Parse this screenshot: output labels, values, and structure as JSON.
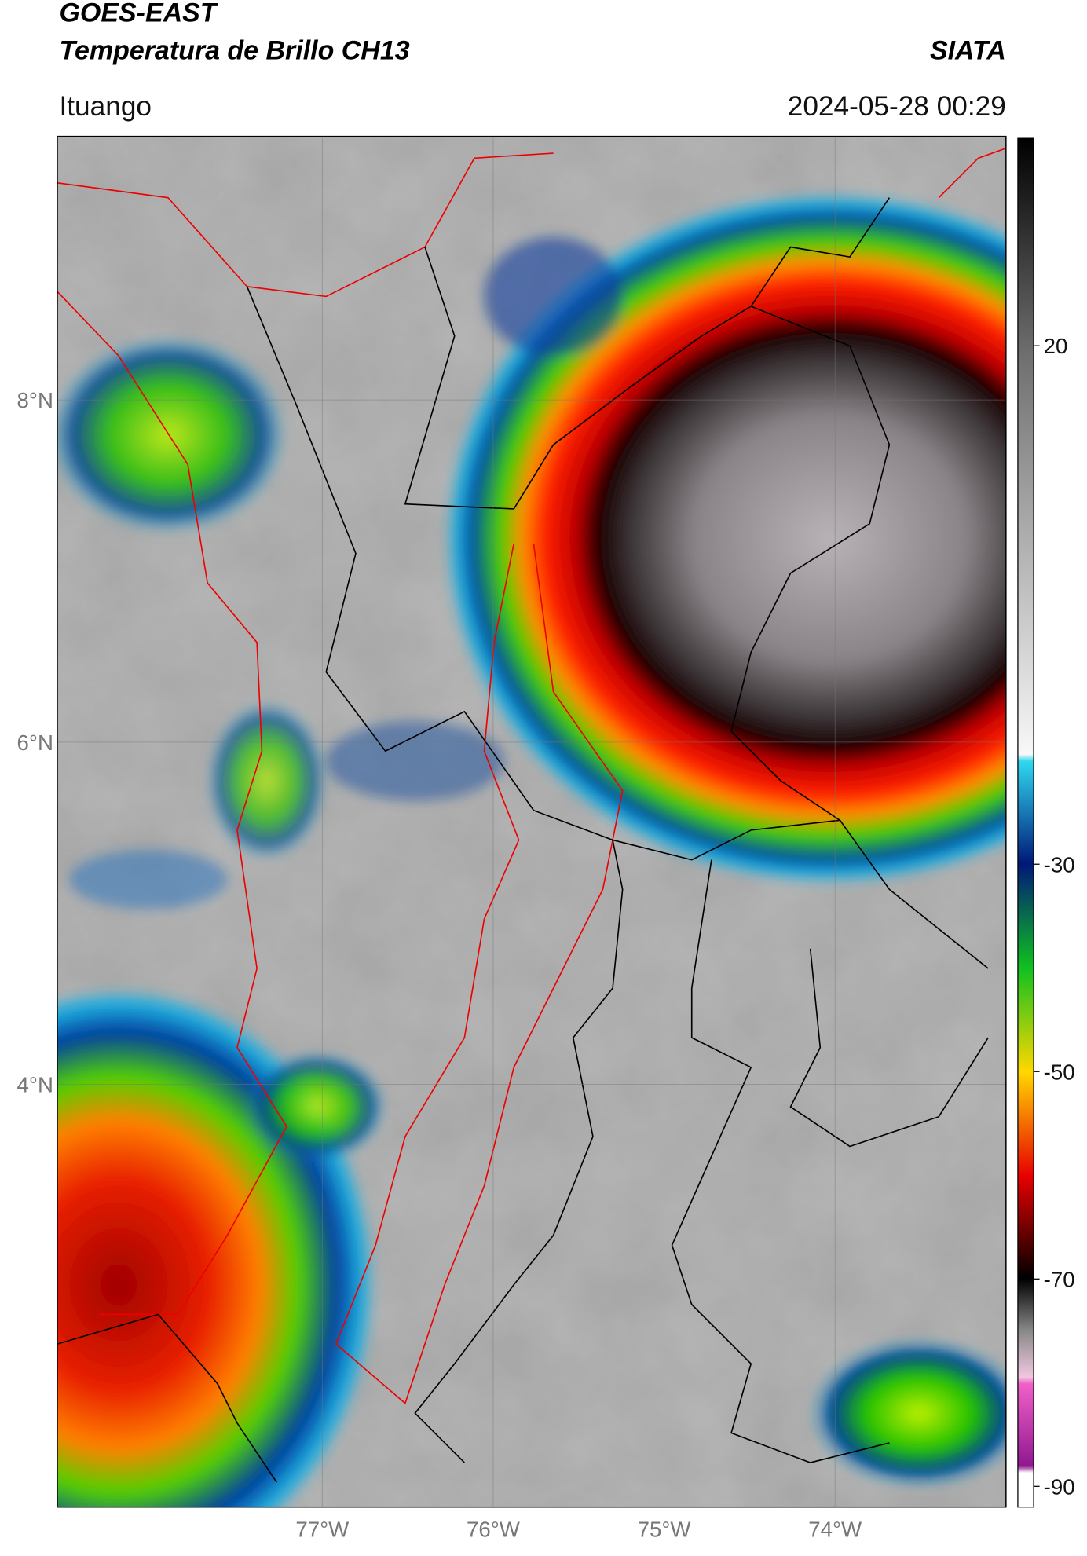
{
  "header": {
    "title": "GOES-EAST",
    "subtitle": "Temperatura de Brillo CH13",
    "source": "SIATA",
    "location": "Ituango",
    "datetime": "2024-05-28 00:29"
  },
  "map": {
    "xlim": [
      -78.55,
      -73.0
    ],
    "ylim": [
      1.53,
      9.54
    ],
    "xticks": [
      {
        "value": -77,
        "label": "77°W"
      },
      {
        "value": -76,
        "label": "76°W"
      },
      {
        "value": -75,
        "label": "75°W"
      },
      {
        "value": -74,
        "label": "74°W"
      }
    ],
    "yticks": [
      {
        "value": 4,
        "label": "4°N"
      },
      {
        "value": 6,
        "label": "6°N"
      },
      {
        "value": 8,
        "label": "8°N"
      }
    ],
    "grid": true
  },
  "colorbar": {
    "lim": [
      -92,
      40
    ],
    "ticks": [
      -90,
      -70,
      -50,
      -30,
      20
    ]
  }
}
